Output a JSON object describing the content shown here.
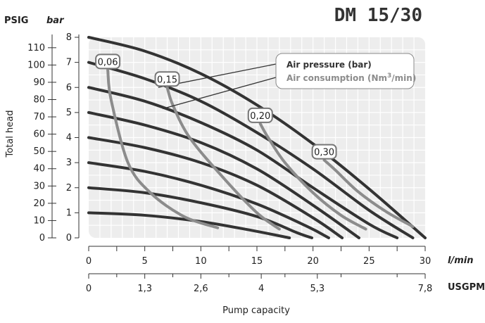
{
  "chart_data": {
    "type": "line",
    "title": "DM 15/30",
    "ylabel": "Total head",
    "xlabel": "Pump capacity",
    "y_units": {
      "psig": "PSIG",
      "bar": "bar"
    },
    "x_units": {
      "lmin": "l/min",
      "usgpm": "USGPM"
    },
    "y_bar_ticks": [
      "0",
      "1",
      "2",
      "3",
      "4",
      "5",
      "6",
      "7",
      "8"
    ],
    "y_psig_ticks": [
      "0",
      "10",
      "20",
      "30",
      "40",
      "50",
      "60",
      "70",
      "80",
      "90",
      "100",
      "110"
    ],
    "x_lmin_ticks": [
      "0",
      "5",
      "10",
      "15",
      "20",
      "25",
      "30"
    ],
    "x_usgpm_ticks": [
      "0",
      "1,3",
      "2,6",
      "4",
      "5,3",
      "7,8"
    ],
    "ylim": [
      0,
      8
    ],
    "xlim": [
      0,
      30
    ],
    "grid": true,
    "legend": {
      "pressure_label": "Air pressure (bar)",
      "consumption_label_prefix": "Air consumption (Nm",
      "consumption_sup": "3",
      "consumption_label_suffix": "/min)",
      "pressure_color": "#333333",
      "consumption_color": "#8c8c8c"
    },
    "pressure_series": [
      {
        "x": [
          0,
          5,
          10,
          15,
          20,
          25,
          30
        ],
        "y": [
          8.0,
          7.45,
          6.55,
          5.3,
          3.75,
          1.95,
          0.0
        ]
      },
      {
        "x": [
          0,
          5,
          10,
          15,
          20,
          25,
          28.9
        ],
        "y": [
          7.0,
          6.35,
          5.45,
          4.2,
          2.75,
          1.1,
          0.0
        ]
      },
      {
        "x": [
          0,
          5,
          10,
          15,
          20,
          25,
          27.5
        ],
        "y": [
          6.0,
          5.45,
          4.6,
          3.5,
          2.0,
          0.55,
          0.0
        ]
      },
      {
        "x": [
          0,
          5,
          10,
          15,
          20,
          24.1
        ],
        "y": [
          5.0,
          4.5,
          3.8,
          2.75,
          1.3,
          0.0
        ]
      },
      {
        "x": [
          0,
          5,
          10,
          15,
          20,
          22.6
        ],
        "y": [
          4.0,
          3.6,
          3.0,
          2.1,
          0.8,
          0.0
        ]
      },
      {
        "x": [
          0,
          5,
          10,
          15,
          19.5,
          21.4
        ],
        "y": [
          3.0,
          2.65,
          2.1,
          1.35,
          0.45,
          0.0
        ]
      },
      {
        "x": [
          0,
          5,
          10,
          15,
          18.6,
          19.9
        ],
        "y": [
          2.0,
          1.8,
          1.4,
          0.85,
          0.2,
          0.0
        ]
      },
      {
        "x": [
          0,
          5,
          10,
          14.5,
          17.9
        ],
        "y": [
          1.0,
          0.9,
          0.65,
          0.3,
          0.0
        ]
      }
    ],
    "consumption_series": [
      {
        "label": "0,06",
        "x": [
          1.7,
          2.0,
          3.5,
          5.5,
          8.5,
          11.5
        ],
        "y": [
          6.7,
          5.5,
          3.0,
          1.8,
          0.85,
          0.4
        ]
      },
      {
        "label": "0,15",
        "x": [
          7.0,
          7.5,
          9.0,
          12.0,
          15.0,
          17.0
        ],
        "y": [
          6.0,
          5.3,
          4.0,
          2.4,
          1.0,
          0.35
        ]
      },
      {
        "label": "0,20",
        "x": [
          15.3,
          16.0,
          17.5,
          20.0,
          22.5,
          24.7
        ],
        "y": [
          4.55,
          4.0,
          3.0,
          1.8,
          0.9,
          0.35
        ]
      },
      {
        "label": "0,30",
        "x": [
          21.0,
          22.0,
          24.0,
          26.5,
          28.9
        ],
        "y": [
          3.1,
          2.7,
          1.85,
          1.05,
          0.45
        ]
      }
    ]
  }
}
